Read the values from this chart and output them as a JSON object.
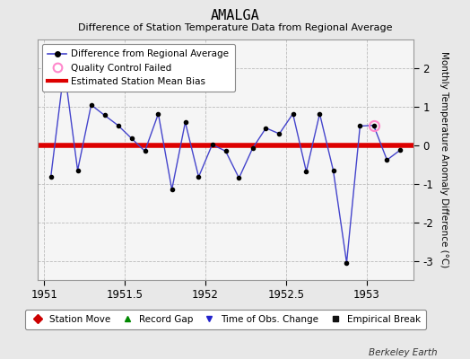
{
  "title": "AMALGA",
  "subtitle": "Difference of Station Temperature Data from Regional Average",
  "ylabel": "Monthly Temperature Anomaly Difference (°C)",
  "xlabel_note": "Berkeley Earth",
  "background_color": "#e8e8e8",
  "plot_bg_color": "#f5f5f5",
  "line_color": "#4444cc",
  "marker_color": "#000000",
  "bias_line_color": "#dd0000",
  "bias_value": 0.0,
  "qc_failed_color": "#ff88cc",
  "xlim": [
    1950.96,
    1953.29
  ],
  "ylim": [
    -3.5,
    2.75
  ],
  "yticks": [
    -3,
    -2,
    -1,
    0,
    1,
    2
  ],
  "xticks": [
    1951,
    1951.5,
    1952,
    1952.5,
    1953
  ],
  "xticklabels": [
    "1951",
    "1951.5",
    "1952",
    "1952.5",
    "1953"
  ],
  "x_data": [
    1951.042,
    1951.125,
    1951.208,
    1951.292,
    1951.375,
    1951.458,
    1951.542,
    1951.625,
    1951.708,
    1951.792,
    1951.875,
    1951.958,
    1952.042,
    1952.125,
    1952.208,
    1952.292,
    1952.375,
    1952.458,
    1952.542,
    1952.625,
    1952.708,
    1952.792,
    1952.875,
    1952.958,
    1953.042,
    1953.125,
    1953.208
  ],
  "y_data": [
    -0.82,
    2.0,
    -0.65,
    1.05,
    0.78,
    0.52,
    0.18,
    -0.15,
    0.82,
    -1.15,
    0.6,
    -0.82,
    0.02,
    -0.15,
    -0.85,
    -0.08,
    0.45,
    0.3,
    0.82,
    -0.68,
    0.82,
    -0.65,
    -3.05,
    0.5,
    0.52,
    -0.38,
    -0.12
  ],
  "qc_failed_x": [
    1953.042
  ],
  "qc_failed_y": [
    0.52
  ],
  "legend_items": [
    {
      "label": "Difference from Regional Average"
    },
    {
      "label": "Quality Control Failed"
    },
    {
      "label": "Estimated Station Mean Bias"
    }
  ],
  "bottom_legend": [
    {
      "label": "Station Move",
      "color": "#cc0000",
      "marker": "D"
    },
    {
      "label": "Record Gap",
      "color": "#008800",
      "marker": "^"
    },
    {
      "label": "Time of Obs. Change",
      "color": "#2222cc",
      "marker": "v"
    },
    {
      "label": "Empirical Break",
      "color": "#111111",
      "marker": "s"
    }
  ]
}
